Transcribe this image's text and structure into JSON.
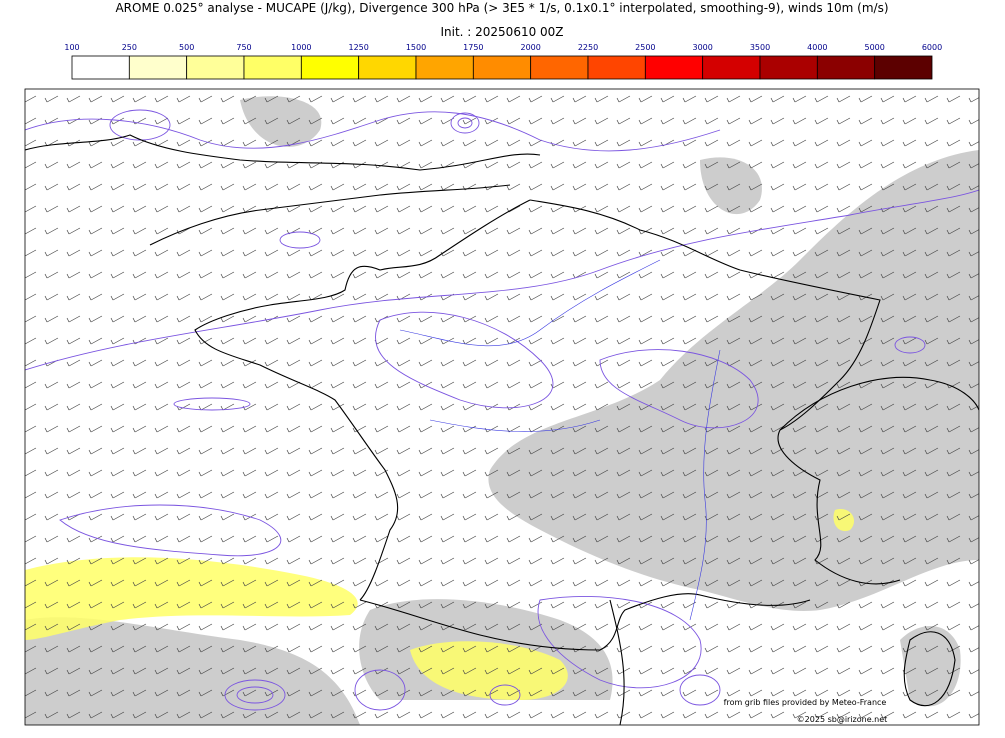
{
  "header": {
    "title": "AROME 0.025° analyse - MUCAPE (J/kg), Divergence 300 hPa (> 3E5 * 1/s, 0.1x0.1° interpolated, smoothing-9), winds 10m (m/s)",
    "init": "Init. : 20250610 00Z"
  },
  "colorbar": {
    "labels": [
      "100",
      "250",
      "500",
      "750",
      "1000",
      "1250",
      "1500",
      "1750",
      "2000",
      "2250",
      "2500",
      "3000",
      "3500",
      "4000",
      "5000",
      "6000"
    ],
    "colors": [
      "#ffffff",
      "#ffffcc",
      "#ffff99",
      "#ffff66",
      "#ffff00",
      "#ffd700",
      "#ffa500",
      "#ff8c00",
      "#ff6600",
      "#ff4500",
      "#ff0000",
      "#d40000",
      "#aa0000",
      "#8b0000",
      "#5c0000"
    ]
  },
  "credits": {
    "source": "from grib files provided by Meteo-France",
    "copyright": "©2025 sb@irizone.net"
  }
}
